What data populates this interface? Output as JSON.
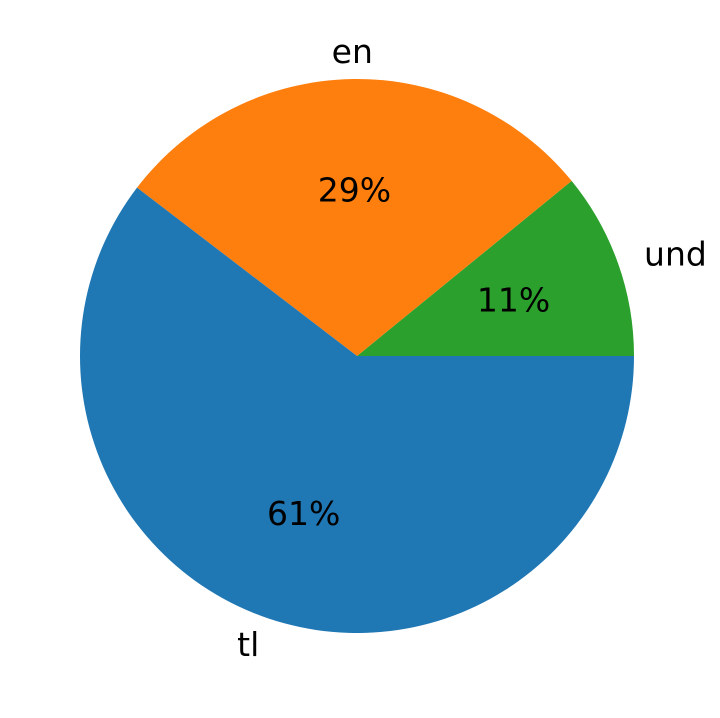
{
  "chart_data": {
    "type": "pie",
    "categories": [
      "und",
      "en",
      "tl"
    ],
    "values": [
      11,
      29,
      61
    ],
    "value_labels": [
      "11%",
      "29%",
      "61%"
    ],
    "colors": [
      "#2ca02c",
      "#ff7f0e",
      "#1f77b4"
    ],
    "start_angle_deg": 0,
    "direction": "counterclockwise",
    "title": "",
    "legend": "none"
  }
}
